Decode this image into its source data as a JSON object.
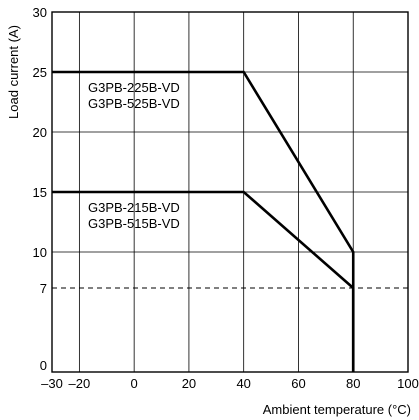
{
  "chart_data": {
    "type": "line",
    "title": "",
    "xlabel": "Ambient temperature (°C)",
    "ylabel": "Load current (A)",
    "xlim": [
      -30,
      100
    ],
    "ylim": [
      0,
      30
    ],
    "x_ticks": [
      -30,
      -20,
      0,
      20,
      40,
      60,
      80,
      100
    ],
    "x_tick_labels": [
      "–30",
      "–20",
      "0",
      "20",
      "40",
      "60",
      "80",
      "100"
    ],
    "y_ticks": [
      0,
      7,
      10,
      15,
      20,
      25,
      30
    ],
    "y_tick_labels": [
      "0",
      "7",
      "10",
      "15",
      "20",
      "25",
      "30"
    ],
    "grid": true,
    "series": [
      {
        "labels": [
          "G3PB-225B-VD",
          "G3PB-525B-VD"
        ],
        "x": [
          -30,
          40,
          80,
          80
        ],
        "y": [
          25,
          25,
          10,
          0
        ]
      },
      {
        "labels": [
          "G3PB-215B-VD",
          "G3PB-515B-VD"
        ],
        "x": [
          -30,
          40,
          80,
          80
        ],
        "y": [
          15,
          15,
          7,
          0
        ]
      }
    ],
    "reference_lines": [
      {
        "orientation": "horizontal",
        "y": 7,
        "style": "dashed"
      }
    ]
  }
}
